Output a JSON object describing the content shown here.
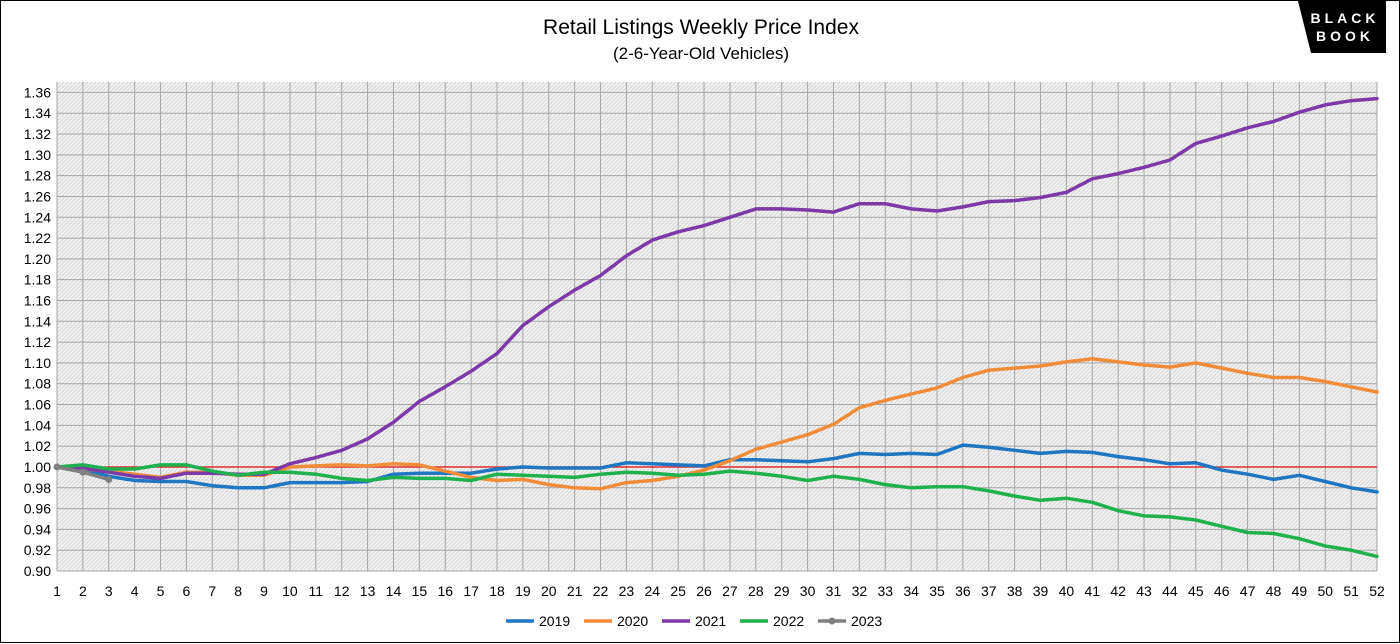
{
  "chart_data": {
    "type": "line",
    "title": "Retail Listings Weekly Price Index",
    "subtitle": "(2-6-Year-Old Vehicles)",
    "xlabel": "",
    "ylabel": "",
    "xlim": [
      1,
      52
    ],
    "ylim": [
      0.9,
      1.37
    ],
    "yticks": [
      0.9,
      0.92,
      0.94,
      0.96,
      0.98,
      1.0,
      1.02,
      1.04,
      1.06,
      1.08,
      1.1,
      1.12,
      1.14,
      1.16,
      1.18,
      1.2,
      1.22,
      1.24,
      1.26,
      1.28,
      1.3,
      1.32,
      1.34,
      1.36
    ],
    "reference_line": {
      "y": 1.0,
      "color": "#e03030"
    },
    "grid": true,
    "legend": "bottom",
    "logo": [
      "BLACK",
      "BOOK"
    ],
    "series": [
      {
        "name": "2019",
        "color": "#1f77c4",
        "x": [
          1,
          2,
          3,
          4,
          5,
          6,
          7,
          8,
          9,
          10,
          11,
          12,
          13,
          14,
          15,
          16,
          17,
          18,
          19,
          20,
          21,
          22,
          23,
          24,
          25,
          26,
          27,
          28,
          29,
          30,
          31,
          32,
          33,
          34,
          35,
          36,
          37,
          38,
          39,
          40,
          41,
          42,
          43,
          44,
          45,
          46,
          47,
          48,
          49,
          50,
          51,
          52
        ],
        "values": [
          1.0,
          0.998,
          0.991,
          0.987,
          0.986,
          0.986,
          0.982,
          0.98,
          0.98,
          0.985,
          0.985,
          0.985,
          0.986,
          0.993,
          0.994,
          0.994,
          0.994,
          0.998,
          1.0,
          0.999,
          0.999,
          0.999,
          1.004,
          1.003,
          1.002,
          1.001,
          1.007,
          1.007,
          1.006,
          1.005,
          1.008,
          1.013,
          1.012,
          1.013,
          1.012,
          1.021,
          1.019,
          1.016,
          1.013,
          1.015,
          1.014,
          1.01,
          1.007,
          1.003,
          1.004,
          0.997,
          0.993,
          0.988,
          0.992,
          0.986,
          0.98,
          0.976
        ]
      },
      {
        "name": "2020",
        "color": "#f28c38",
        "x": [
          1,
          2,
          3,
          4,
          5,
          6,
          7,
          8,
          9,
          10,
          11,
          12,
          13,
          14,
          15,
          16,
          17,
          18,
          19,
          20,
          21,
          22,
          23,
          24,
          25,
          26,
          27,
          28,
          29,
          30,
          31,
          32,
          33,
          34,
          35,
          36,
          37,
          38,
          39,
          40,
          41,
          42,
          43,
          44,
          45,
          46,
          47,
          48,
          49,
          50,
          51,
          52
        ],
        "values": [
          1.0,
          0.998,
          0.996,
          0.993,
          0.99,
          0.995,
          0.995,
          0.992,
          0.992,
          1.0,
          1.001,
          1.002,
          1.001,
          1.003,
          1.002,
          0.996,
          0.99,
          0.987,
          0.988,
          0.983,
          0.98,
          0.979,
          0.985,
          0.987,
          0.991,
          0.997,
          1.006,
          1.017,
          1.024,
          1.031,
          1.041,
          1.057,
          1.064,
          1.07,
          1.076,
          1.086,
          1.093,
          1.095,
          1.097,
          1.101,
          1.104,
          1.101,
          1.098,
          1.096,
          1.1,
          1.095,
          1.09,
          1.086,
          1.086,
          1.082,
          1.077,
          1.072
        ]
      },
      {
        "name": "2021",
        "color": "#7b3aa8",
        "x": [
          1,
          2,
          3,
          4,
          5,
          6,
          7,
          8,
          9,
          10,
          11,
          12,
          13,
          14,
          15,
          16,
          17,
          18,
          19,
          20,
          21,
          22,
          23,
          24,
          25,
          26,
          27,
          28,
          29,
          30,
          31,
          32,
          33,
          34,
          35,
          36,
          37,
          38,
          39,
          40,
          41,
          42,
          43,
          44,
          45,
          46,
          47,
          48,
          49,
          50,
          51,
          52
        ],
        "values": [
          1.0,
          0.999,
          0.995,
          0.991,
          0.989,
          0.994,
          0.994,
          0.993,
          0.993,
          1.003,
          1.009,
          1.016,
          1.027,
          1.043,
          1.063,
          1.077,
          1.092,
          1.109,
          1.136,
          1.154,
          1.17,
          1.184,
          1.203,
          1.218,
          1.226,
          1.232,
          1.24,
          1.248,
          1.248,
          1.247,
          1.245,
          1.253,
          1.253,
          1.248,
          1.246,
          1.25,
          1.255,
          1.256,
          1.259,
          1.264,
          1.277,
          1.282,
          1.288,
          1.295,
          1.311,
          1.318,
          1.326,
          1.332,
          1.341,
          1.348,
          1.352,
          1.354
        ]
      },
      {
        "name": "2022",
        "color": "#1fb14f",
        "x": [
          1,
          2,
          3,
          4,
          5,
          6,
          7,
          8,
          9,
          10,
          11,
          12,
          13,
          14,
          15,
          16,
          17,
          18,
          19,
          20,
          21,
          22,
          23,
          24,
          25,
          26,
          27,
          28,
          29,
          30,
          31,
          32,
          33,
          34,
          35,
          36,
          37,
          38,
          39,
          40,
          41,
          42,
          43,
          44,
          45,
          46,
          47,
          48,
          49,
          50,
          51,
          52
        ],
        "values": [
          1.0,
          1.002,
          0.998,
          0.998,
          1.002,
          1.002,
          0.996,
          0.992,
          0.995,
          0.995,
          0.993,
          0.989,
          0.987,
          0.99,
          0.989,
          0.989,
          0.987,
          0.993,
          0.992,
          0.991,
          0.99,
          0.993,
          0.995,
          0.994,
          0.992,
          0.993,
          0.996,
          0.994,
          0.991,
          0.987,
          0.991,
          0.988,
          0.983,
          0.98,
          0.981,
          0.981,
          0.977,
          0.972,
          0.968,
          0.97,
          0.966,
          0.958,
          0.953,
          0.952,
          0.949,
          0.943,
          0.937,
          0.936,
          0.931,
          0.924,
          0.92,
          0.914
        ]
      },
      {
        "name": "2023",
        "color": "#808080",
        "marker": true,
        "x": [
          1,
          2,
          3
        ],
        "values": [
          1.0,
          0.995,
          0.988
        ]
      }
    ]
  }
}
